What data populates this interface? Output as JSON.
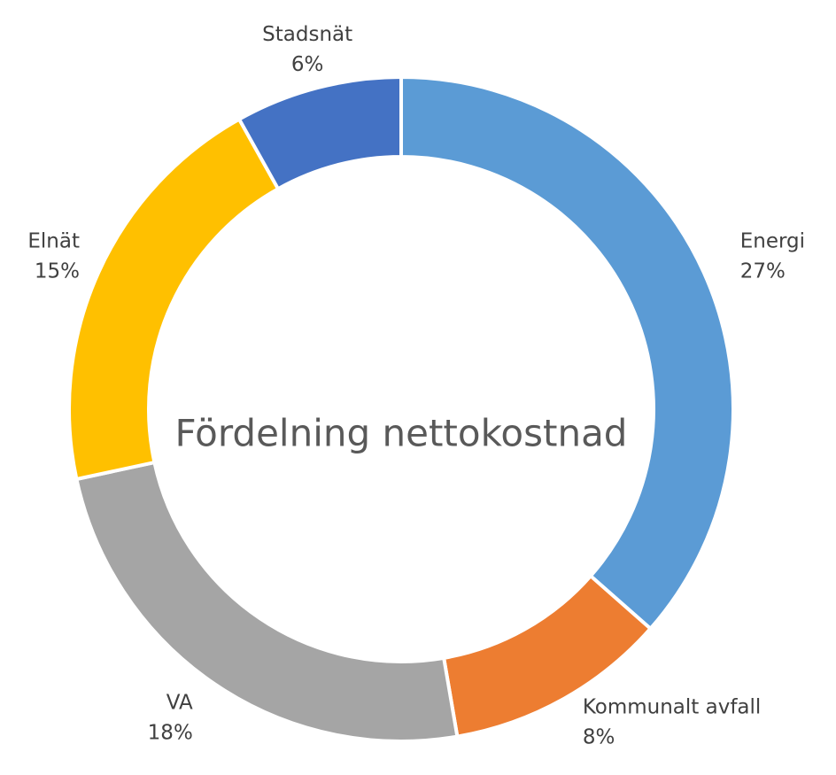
{
  "chart_data": {
    "type": "donut",
    "title": "Fördelning nettokostnad",
    "categories": [
      "Energi",
      "Kommunalt avfall",
      "VA",
      "Elnät",
      "Stadsnät"
    ],
    "values": [
      27,
      8,
      18,
      15,
      6
    ],
    "value_labels": [
      "27%",
      "8%",
      "18%",
      "15%",
      "6%"
    ],
    "colors": [
      "#5b9bd5",
      "#ed7d31",
      "#a5a5a5",
      "#ffc000",
      "#4472c4"
    ]
  }
}
